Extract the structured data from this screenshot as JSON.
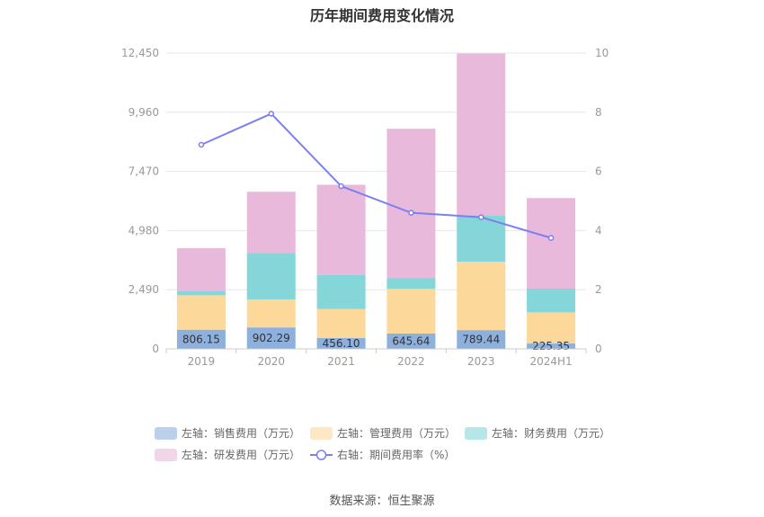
{
  "chart_data": {
    "type": "bar",
    "title": "历年期间费用变化情况",
    "categories": [
      "2019",
      "2020",
      "2021",
      "2022",
      "2023",
      "2024H1"
    ],
    "stacked": true,
    "left_axis": {
      "min": 0,
      "max": 12450,
      "ticks": [
        "0",
        "2,490",
        "4,980",
        "7,470",
        "9,960",
        "12,450"
      ]
    },
    "right_axis": {
      "min": 0,
      "max": 10,
      "ticks": [
        "0",
        "2",
        "4",
        "6",
        "8",
        "10"
      ]
    },
    "series": [
      {
        "name": "左轴：销售费用（万元）",
        "color": "#8eb0dd",
        "values": [
          806.15,
          902.29,
          456.1,
          645.64,
          789.44,
          225.35
        ],
        "labels": [
          "806.15",
          "902.29",
          "456.10",
          "645.64",
          "789.44",
          "225.35"
        ]
      },
      {
        "name": "左轴：管理费用（万元）",
        "color": "#fdd89b",
        "values": [
          1450,
          1180,
          1220,
          1880,
          2880,
          1310
        ]
      },
      {
        "name": "左轴：财务费用（万元）",
        "color": "#84d6d9",
        "values": [
          180,
          1950,
          1430,
          460,
          1960,
          1000
        ]
      },
      {
        "name": "左轴：研发费用（万元）",
        "color": "#e8b9da",
        "values": [
          1800,
          2580,
          3800,
          6280,
          6800,
          3810
        ]
      }
    ],
    "line": {
      "name": "右轴：期间费用率（%）",
      "color": "#7b7ff0",
      "values": [
        6.9,
        7.95,
        5.5,
        4.6,
        4.45,
        3.75
      ]
    },
    "grid": true,
    "legend_position": "bottom"
  },
  "source": "数据来源：恒生聚源"
}
